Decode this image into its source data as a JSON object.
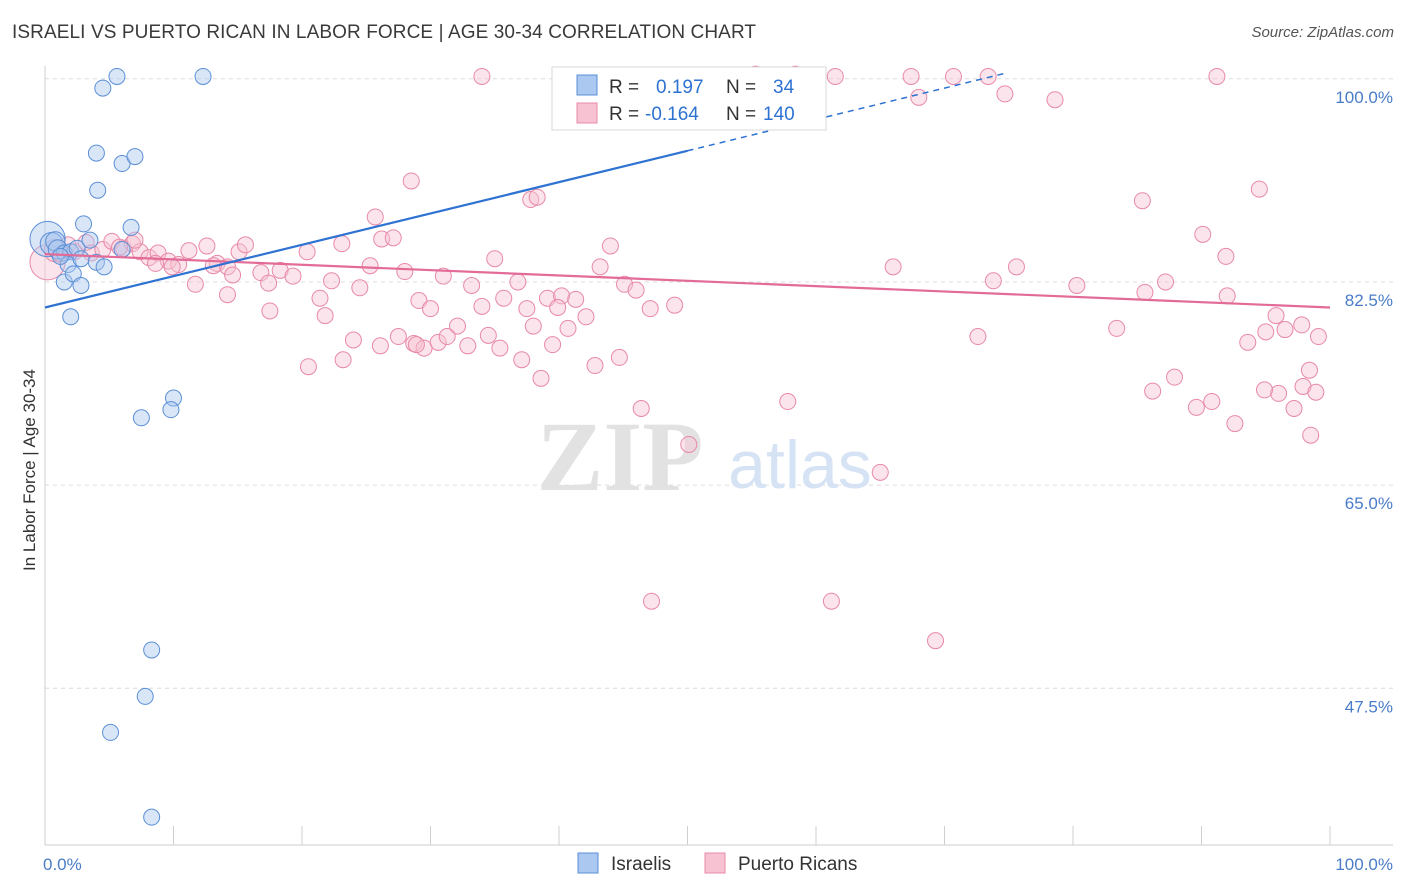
{
  "title": "ISRAELI VS PUERTO RICAN IN LABOR FORCE | AGE 30-34 CORRELATION CHART",
  "source": "Source: ZipAtlas.com",
  "watermark": {
    "zip": "ZIP",
    "atlas": "atlas"
  },
  "colors": {
    "israelis_fill": "#aac8f0",
    "israelis_stroke": "#5b8fd6",
    "israelis_line": "#2e72d2",
    "pr_fill": "#f7c3d3",
    "pr_stroke": "#e889a8",
    "pr_line": "#e26b97",
    "tick_text": "#4a7cc9",
    "grid": "#dcdcdc"
  },
  "legend_box": {
    "rows": [
      {
        "r_label": "R =",
        "r_value": "0.197",
        "n_label": "N =",
        "n_value": "34"
      },
      {
        "r_label": "R =",
        "r_value": "-0.164",
        "n_label": "N =",
        "n_value": "140"
      }
    ]
  },
  "bottom_legend": [
    "Israelis",
    "Puerto Ricans"
  ],
  "chart_data": {
    "type": "scatter",
    "title": "ISRAELI VS PUERTO RICAN IN LABOR FORCE | AGE 30-34 CORRELATION CHART",
    "xlabel": "",
    "ylabel": "In Labor Force | Age 30-34",
    "xlim": [
      0,
      100
    ],
    "ylim": [
      34,
      100.5
    ],
    "x_tick_labels": [
      "0.0%",
      "100.0%"
    ],
    "y_ticks": [
      47.5,
      65.0,
      82.5,
      100.0
    ],
    "y_tick_labels": [
      "47.5%",
      "65.0%",
      "82.5%",
      "100.0%"
    ],
    "grid": true,
    "legend_position": "top-center",
    "series": [
      {
        "name": "Israelis",
        "r": 0.197,
        "n": 34,
        "trend": {
          "x": [
            0,
            100
          ],
          "y": [
            80.3,
            107.3
          ],
          "solid_until_x": 50
        },
        "points": [
          [
            0.2,
            86.2,
            2.2
          ],
          [
            0.5,
            85.8,
            1.4
          ],
          [
            0.8,
            86.0,
            1.2
          ],
          [
            1.0,
            85.3,
            1.2
          ],
          [
            1.5,
            85.0,
            1
          ],
          [
            2.0,
            85.1,
            1
          ],
          [
            2.5,
            85.4,
            1
          ],
          [
            3.0,
            87.5,
            1
          ],
          [
            3.5,
            86.1,
            1
          ],
          [
            1.8,
            84.0,
            1
          ],
          [
            2.8,
            84.5,
            1
          ],
          [
            4.0,
            84.2,
            1
          ],
          [
            1.5,
            82.5,
            1
          ],
          [
            2.2,
            83.2,
            1
          ],
          [
            2.8,
            82.2,
            1
          ],
          [
            4.6,
            83.8,
            1
          ],
          [
            2.0,
            79.5,
            1
          ],
          [
            4.5,
            99.2,
            1
          ],
          [
            5.6,
            100.2,
            1
          ],
          [
            12.3,
            100.2,
            1
          ],
          [
            4.0,
            93.6,
            1
          ],
          [
            6.0,
            92.7,
            1
          ],
          [
            7.0,
            93.3,
            1
          ],
          [
            4.1,
            90.4,
            1
          ],
          [
            6.7,
            87.2,
            1
          ],
          [
            10.0,
            72.5,
            1
          ],
          [
            7.5,
            70.8,
            1
          ],
          [
            9.8,
            71.5,
            1
          ],
          [
            8.3,
            50.8,
            1
          ],
          [
            7.8,
            46.8,
            1
          ],
          [
            5.1,
            43.7,
            1
          ],
          [
            8.3,
            36.4,
            1
          ],
          [
            6.0,
            85.3,
            1
          ],
          [
            1.2,
            84.7,
            1
          ]
        ]
      },
      {
        "name": "Puerto Ricans",
        "r": -0.164,
        "n": 140,
        "trend": {
          "x": [
            0,
            100
          ],
          "y": [
            84.9,
            80.3
          ]
        },
        "points": [
          [
            0.2,
            84.2,
            2.2
          ],
          [
            0.8,
            85.2,
            1.4
          ],
          [
            1.2,
            84.9,
            1
          ],
          [
            1.8,
            85.7,
            1
          ],
          [
            2.3,
            85.1,
            1
          ],
          [
            3.2,
            85.9,
            1
          ],
          [
            3.6,
            85.0,
            1
          ],
          [
            4.5,
            85.3,
            1
          ],
          [
            5.2,
            86.0,
            1
          ],
          [
            6.1,
            85.4,
            1
          ],
          [
            6.8,
            85.8,
            1
          ],
          [
            7.4,
            85.1,
            1
          ],
          [
            8.1,
            84.6,
            1
          ],
          [
            8.8,
            85.0,
            1
          ],
          [
            9.6,
            84.3,
            1
          ],
          [
            10.4,
            84.0,
            1
          ],
          [
            11.2,
            85.2,
            1
          ],
          [
            12.6,
            85.6,
            1
          ],
          [
            13.4,
            84.1,
            1
          ],
          [
            14.2,
            83.8,
            1
          ],
          [
            15.1,
            85.1,
            1
          ],
          [
            15.6,
            85.7,
            1
          ],
          [
            5.8,
            85.5,
            1
          ],
          [
            7.0,
            86.1,
            1
          ],
          [
            8.6,
            84.1,
            1
          ],
          [
            9.9,
            83.8,
            1
          ],
          [
            11.7,
            82.3,
            1
          ],
          [
            13.1,
            83.9,
            1
          ],
          [
            14.6,
            83.1,
            1
          ],
          [
            16.8,
            83.3,
            1
          ],
          [
            17.4,
            82.4,
            1
          ],
          [
            18.3,
            83.5,
            1
          ],
          [
            19.3,
            83.0,
            1
          ],
          [
            20.4,
            85.1,
            1
          ],
          [
            21.4,
            81.1,
            1
          ],
          [
            22.3,
            82.6,
            1
          ],
          [
            23.1,
            85.8,
            1
          ],
          [
            24.5,
            82.0,
            1
          ],
          [
            25.3,
            83.9,
            1
          ],
          [
            26.2,
            86.2,
            1
          ],
          [
            27.1,
            86.3,
            1
          ],
          [
            28.0,
            83.4,
            1
          ],
          [
            29.1,
            80.9,
            1
          ],
          [
            30.0,
            80.2,
            1
          ],
          [
            31.0,
            83.0,
            1
          ],
          [
            32.1,
            78.7,
            1
          ],
          [
            33.2,
            82.2,
            1
          ],
          [
            34.0,
            80.4,
            1
          ],
          [
            35.0,
            84.5,
            1
          ],
          [
            35.7,
            81.1,
            1
          ],
          [
            36.8,
            82.5,
            1
          ],
          [
            37.5,
            80.2,
            1
          ],
          [
            38.0,
            78.7,
            1
          ],
          [
            39.1,
            81.1,
            1
          ],
          [
            40.2,
            81.3,
            1
          ],
          [
            41.3,
            81.0,
            1
          ],
          [
            42.1,
            79.5,
            1
          ],
          [
            43.2,
            83.8,
            1
          ],
          [
            44.0,
            85.6,
            1
          ],
          [
            45.1,
            82.3,
            1
          ],
          [
            46.0,
            81.8,
            1
          ],
          [
            47.1,
            80.2,
            1
          ],
          [
            49.0,
            80.5,
            1
          ],
          [
            50.1,
            68.5,
            1
          ],
          [
            21.8,
            79.6,
            1
          ],
          [
            24.0,
            77.5,
            1
          ],
          [
            26.1,
            77.0,
            1
          ],
          [
            27.5,
            77.8,
            1
          ],
          [
            28.7,
            77.2,
            1
          ],
          [
            29.5,
            76.8,
            1
          ],
          [
            30.6,
            77.3,
            1
          ],
          [
            31.3,
            77.8,
            1
          ],
          [
            32.9,
            77.0,
            1
          ],
          [
            34.5,
            77.9,
            1
          ],
          [
            35.4,
            76.8,
            1
          ],
          [
            37.1,
            75.8,
            1
          ],
          [
            38.6,
            74.2,
            1
          ],
          [
            39.9,
            80.3,
            1
          ],
          [
            40.7,
            78.5,
            1
          ],
          [
            42.8,
            75.3,
            1
          ],
          [
            44.7,
            76.0,
            1
          ],
          [
            46.4,
            71.6,
            1
          ],
          [
            23.2,
            75.8,
            1
          ],
          [
            28.9,
            77.1,
            1
          ],
          [
            39.5,
            77.1,
            1
          ],
          [
            20.5,
            75.2,
            1
          ],
          [
            14.2,
            81.4,
            1
          ],
          [
            17.5,
            80.0,
            1
          ],
          [
            28.5,
            91.2,
            1
          ],
          [
            37.8,
            89.6,
            1
          ],
          [
            38.3,
            89.8,
            1
          ],
          [
            25.7,
            88.1,
            1
          ],
          [
            34.0,
            100.2,
            1
          ],
          [
            55.3,
            100.4,
            1
          ],
          [
            58.4,
            100.4,
            1
          ],
          [
            61.5,
            100.2,
            1
          ],
          [
            67.4,
            100.2,
            1
          ],
          [
            68.0,
            98.4,
            1
          ],
          [
            70.7,
            100.2,
            1
          ],
          [
            73.4,
            100.2,
            1
          ],
          [
            74.7,
            98.7,
            1
          ],
          [
            78.6,
            98.2,
            1
          ],
          [
            91.2,
            100.2,
            1
          ],
          [
            85.4,
            89.5,
            1
          ],
          [
            94.5,
            90.5,
            1
          ],
          [
            90.1,
            86.6,
            1
          ],
          [
            91.9,
            84.7,
            1
          ],
          [
            66.0,
            83.8,
            1
          ],
          [
            73.8,
            82.6,
            1
          ],
          [
            75.6,
            83.8,
            1
          ],
          [
            80.3,
            82.2,
            1
          ],
          [
            83.4,
            78.5,
            1
          ],
          [
            85.6,
            81.6,
            1
          ],
          [
            87.2,
            82.5,
            1
          ],
          [
            92.0,
            81.3,
            1
          ],
          [
            93.6,
            77.3,
            1
          ],
          [
            95.0,
            78.2,
            1
          ],
          [
            95.8,
            79.6,
            1
          ],
          [
            96.5,
            78.4,
            1
          ],
          [
            97.8,
            78.8,
            1
          ],
          [
            99.1,
            77.8,
            1
          ],
          [
            98.4,
            74.9,
            1
          ],
          [
            97.9,
            73.5,
            1
          ],
          [
            98.9,
            73.0,
            1
          ],
          [
            96.0,
            72.9,
            1
          ],
          [
            94.9,
            73.2,
            1
          ],
          [
            92.6,
            70.3,
            1
          ],
          [
            90.8,
            72.2,
            1
          ],
          [
            89.6,
            71.7,
            1
          ],
          [
            87.9,
            74.3,
            1
          ],
          [
            86.2,
            73.1,
            1
          ],
          [
            97.2,
            71.6,
            1
          ],
          [
            98.5,
            69.3,
            1
          ],
          [
            57.8,
            72.2,
            1
          ],
          [
            72.6,
            77.8,
            1
          ],
          [
            65.0,
            66.1,
            1
          ],
          [
            47.2,
            55.0,
            1
          ],
          [
            61.2,
            55.0,
            1
          ],
          [
            69.3,
            51.6,
            1
          ]
        ]
      }
    ]
  }
}
